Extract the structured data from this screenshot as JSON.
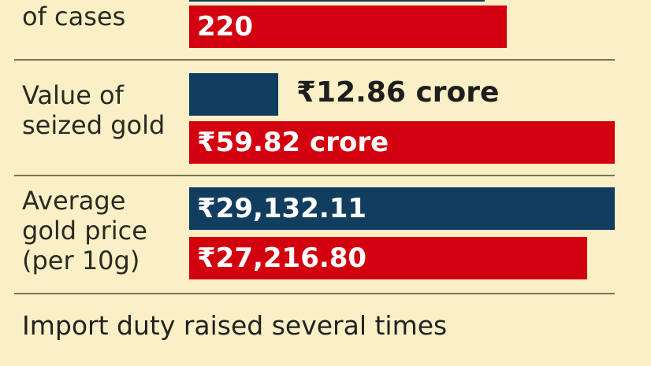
{
  "chart_data": {
    "type": "bar",
    "orientation": "horizontal",
    "colors": {
      "blue": "#113d5e",
      "red": "#d2000f"
    },
    "groups": [
      {
        "label": "of cases",
        "bars": [
          {
            "series": "blue",
            "value": null,
            "label": ""
          },
          {
            "series": "red",
            "value": 220,
            "label": "220"
          }
        ]
      },
      {
        "label": "Value of seized gold",
        "bars": [
          {
            "series": "blue",
            "value": 12.86,
            "label": "₹12.86 crore"
          },
          {
            "series": "red",
            "value": 59.82,
            "label": "₹59.82 crore"
          }
        ]
      },
      {
        "label": "Average gold price (per 10g)",
        "bars": [
          {
            "series": "blue",
            "value": 29132.11,
            "label": "₹29,132.11"
          },
          {
            "series": "red",
            "value": 27216.8,
            "label": "₹27,216.80"
          }
        ]
      }
    ],
    "footnote": "Import duty raised several times"
  }
}
